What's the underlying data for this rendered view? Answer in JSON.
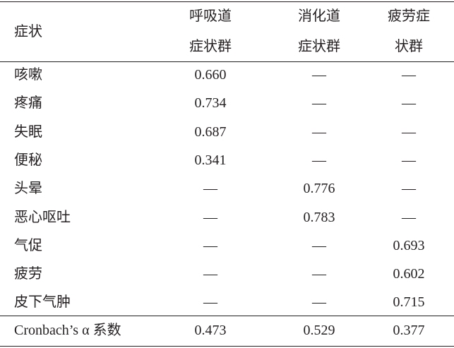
{
  "table": {
    "header": [
      [
        "症状"
      ],
      [
        "呼吸道",
        "症状群"
      ],
      [
        "消化道",
        "症状群"
      ],
      [
        "疲劳症",
        "状群"
      ]
    ],
    "rows": [
      [
        "咳嗽",
        "0.660",
        "—",
        "—"
      ],
      [
        "疼痛",
        "0.734",
        "—",
        "—"
      ],
      [
        "失眠",
        "0.687",
        "—",
        "—"
      ],
      [
        "便秘",
        "0.341",
        "—",
        "—"
      ],
      [
        "头晕",
        "—",
        "0.776",
        "—"
      ],
      [
        "恶心呕吐",
        "—",
        "0.783",
        "—"
      ],
      [
        "气促",
        "—",
        "—",
        "0.693"
      ],
      [
        "疲劳",
        "—",
        "—",
        "0.602"
      ],
      [
        "皮下气肿",
        "—",
        "—",
        "0.715"
      ]
    ],
    "summary": [
      "Cronbach’s α 系数",
      "0.473",
      "0.529",
      "0.377"
    ]
  }
}
